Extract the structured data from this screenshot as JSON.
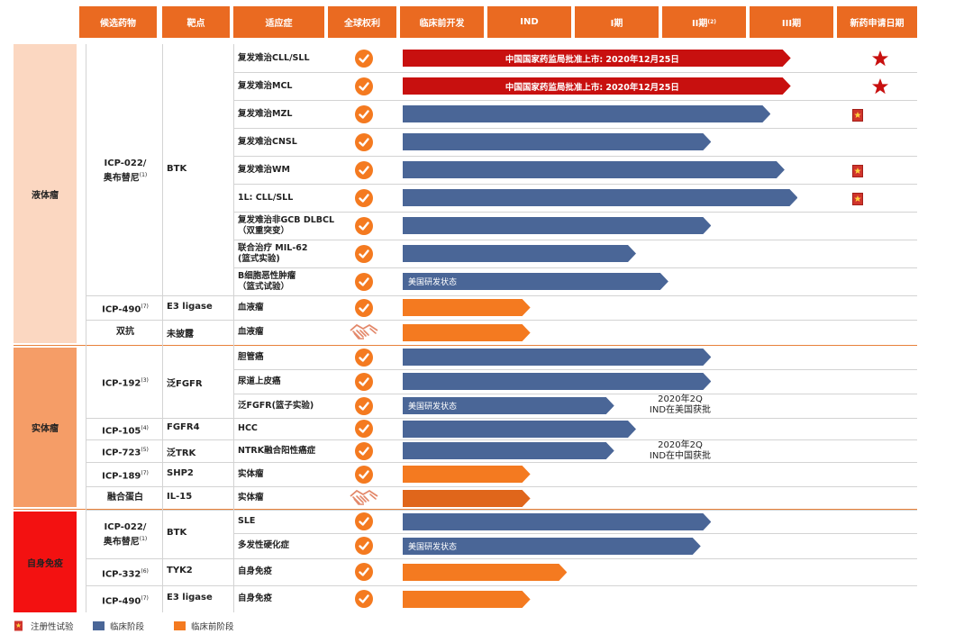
{
  "chart_data": {
    "type": "table",
    "columns": [
      "候选药物",
      "靶点",
      "适应症",
      "全球权利",
      "临床前开发",
      "IND",
      "I期",
      "II期",
      "III期",
      "新药申请日期"
    ],
    "column_sups": {
      "7": "(2)"
    },
    "stages": [
      "临床前开发",
      "IND",
      "I期",
      "II期",
      "III期",
      "新药申请日期"
    ],
    "categories": [
      "液体瘤",
      "实体瘤",
      "自身免疫"
    ],
    "legend": [
      "注册性试验",
      "临床阶段",
      "临床前阶段"
    ],
    "groups": [
      {
        "drug": "ICP-022/\n奥布替尼",
        "sup": "(1)",
        "target": "BTK",
        "rows": [
          {
            "indication": "复发难治CLL/SLL",
            "rights": "check",
            "stage": "approved",
            "end": 4.44,
            "label": "中国国家药监局批准上市: 2020年12月25日",
            "marker": "star"
          },
          {
            "indication": "复发难治MCL",
            "rights": "check",
            "stage": "approved",
            "end": 4.44,
            "label": "中国国家药监局批准上市: 2020年12月25日",
            "marker": "star"
          },
          {
            "indication": "复发难治MZL",
            "rights": "check",
            "stage": "clinical",
            "end": 4.21,
            "marker": "flag"
          },
          {
            "indication": "复发难治CNSL",
            "rights": "check",
            "stage": "clinical",
            "end": 3.53
          },
          {
            "indication": "复发难治WM",
            "rights": "check",
            "stage": "clinical",
            "end": 4.37,
            "marker": "flag"
          },
          {
            "indication": "1L: CLL/SLL",
            "rights": "check",
            "stage": "clinical",
            "end": 4.52,
            "marker": "flag"
          },
          {
            "indication": "复发难治非GCB DLBCL\n（双重突变）",
            "rights": "check",
            "stage": "clinical",
            "end": 3.53
          },
          {
            "indication": "联合治疗 MIL-62\n(篮式实验)",
            "rights": "check",
            "stage": "clinical",
            "end": 2.67
          },
          {
            "indication": "B细胞恶性肿瘤\n（篮式试验）",
            "rights": "check",
            "stage": "clinical",
            "end": 3.04,
            "label": "美国研发状态"
          }
        ]
      },
      {
        "drug": "ICP-490",
        "sup": "(7)",
        "target": "E3 ligase",
        "rows": [
          {
            "indication": "血液瘤",
            "rights": "check",
            "stage": "preclinical",
            "end": 1.46
          }
        ]
      },
      {
        "drug": "双抗",
        "sup": "",
        "target": "未披露",
        "rows": [
          {
            "indication": "血液瘤",
            "rights": "partner",
            "stage": "preclinical",
            "end": 1.46
          }
        ]
      },
      {
        "drug": "ICP-192",
        "sup": "(3)",
        "target": "泛FGFR",
        "rows": [
          {
            "indication": "胆管癌",
            "rights": "check",
            "stage": "clinical",
            "end": 3.53
          },
          {
            "indication": "尿道上皮癌",
            "rights": "check",
            "stage": "clinical",
            "end": 3.53
          },
          {
            "indication": "泛FGFR(篮子实验)",
            "rights": "check",
            "stage": "clinical",
            "end": 2.42,
            "label": "美国研发状态",
            "note": "2020年2Q\nIND在美国获批"
          }
        ]
      },
      {
        "drug": "ICP-105",
        "sup": "(4)",
        "target": "FGFR4",
        "rows": [
          {
            "indication": "HCC",
            "rights": "check",
            "stage": "clinical",
            "end": 2.67
          }
        ]
      },
      {
        "drug": "ICP-723",
        "sup": "(5)",
        "target": "泛TRK",
        "rows": [
          {
            "indication": "NTRK融合阳性癌症",
            "rights": "check",
            "stage": "clinical",
            "end": 2.42,
            "note": "2020年2Q\nIND在中国获批"
          }
        ]
      },
      {
        "drug": "ICP-189",
        "sup": "(7)",
        "target": "SHP2",
        "rows": [
          {
            "indication": "实体瘤",
            "rights": "check",
            "stage": "preclinical",
            "end": 1.46
          }
        ]
      },
      {
        "drug": "融合蛋白",
        "sup": "",
        "target": "IL-15",
        "rows": [
          {
            "indication": "实体瘤",
            "rights": "partner",
            "stage": "preclinical_dark",
            "end": 1.46
          }
        ]
      },
      {
        "drug": "ICP-022/\n奥布替尼",
        "sup": "(1)",
        "target": "BTK",
        "rows": [
          {
            "indication": "SLE",
            "rights": "check",
            "stage": "clinical",
            "end": 3.53
          },
          {
            "indication": "多发性硬化症",
            "rights": "check",
            "stage": "clinical",
            "end": 3.41,
            "label": "美国研发状态"
          }
        ]
      },
      {
        "drug": "ICP-332",
        "sup": "(6)",
        "target": "TYK2",
        "rows": [
          {
            "indication": "自身免疫",
            "rights": "check",
            "stage": "preclinical",
            "end": 1.88
          }
        ]
      },
      {
        "drug": "ICP-490",
        "sup": "(7)",
        "target": "E3 ligase",
        "rows": [
          {
            "indication": "自身免疫",
            "rights": "check",
            "stage": "preclinical",
            "end": 1.46
          }
        ]
      }
    ]
  },
  "colors": {
    "header": "#ea6a21",
    "approved": "#c8100f",
    "clinical": "#4a6697",
    "preclinical": "#f47a20",
    "preclinical_dark": "#e0661b",
    "cat_liquid": "#fbd7c1",
    "cat_solid": "#f59d67",
    "cat_auto": "#f31111",
    "check": "#f47a20"
  },
  "icons": {
    "rights_check": "check-circle-icon",
    "rights_partner": "handshake-icon",
    "star": "star-icon",
    "flag": "registration-flag-icon"
  }
}
